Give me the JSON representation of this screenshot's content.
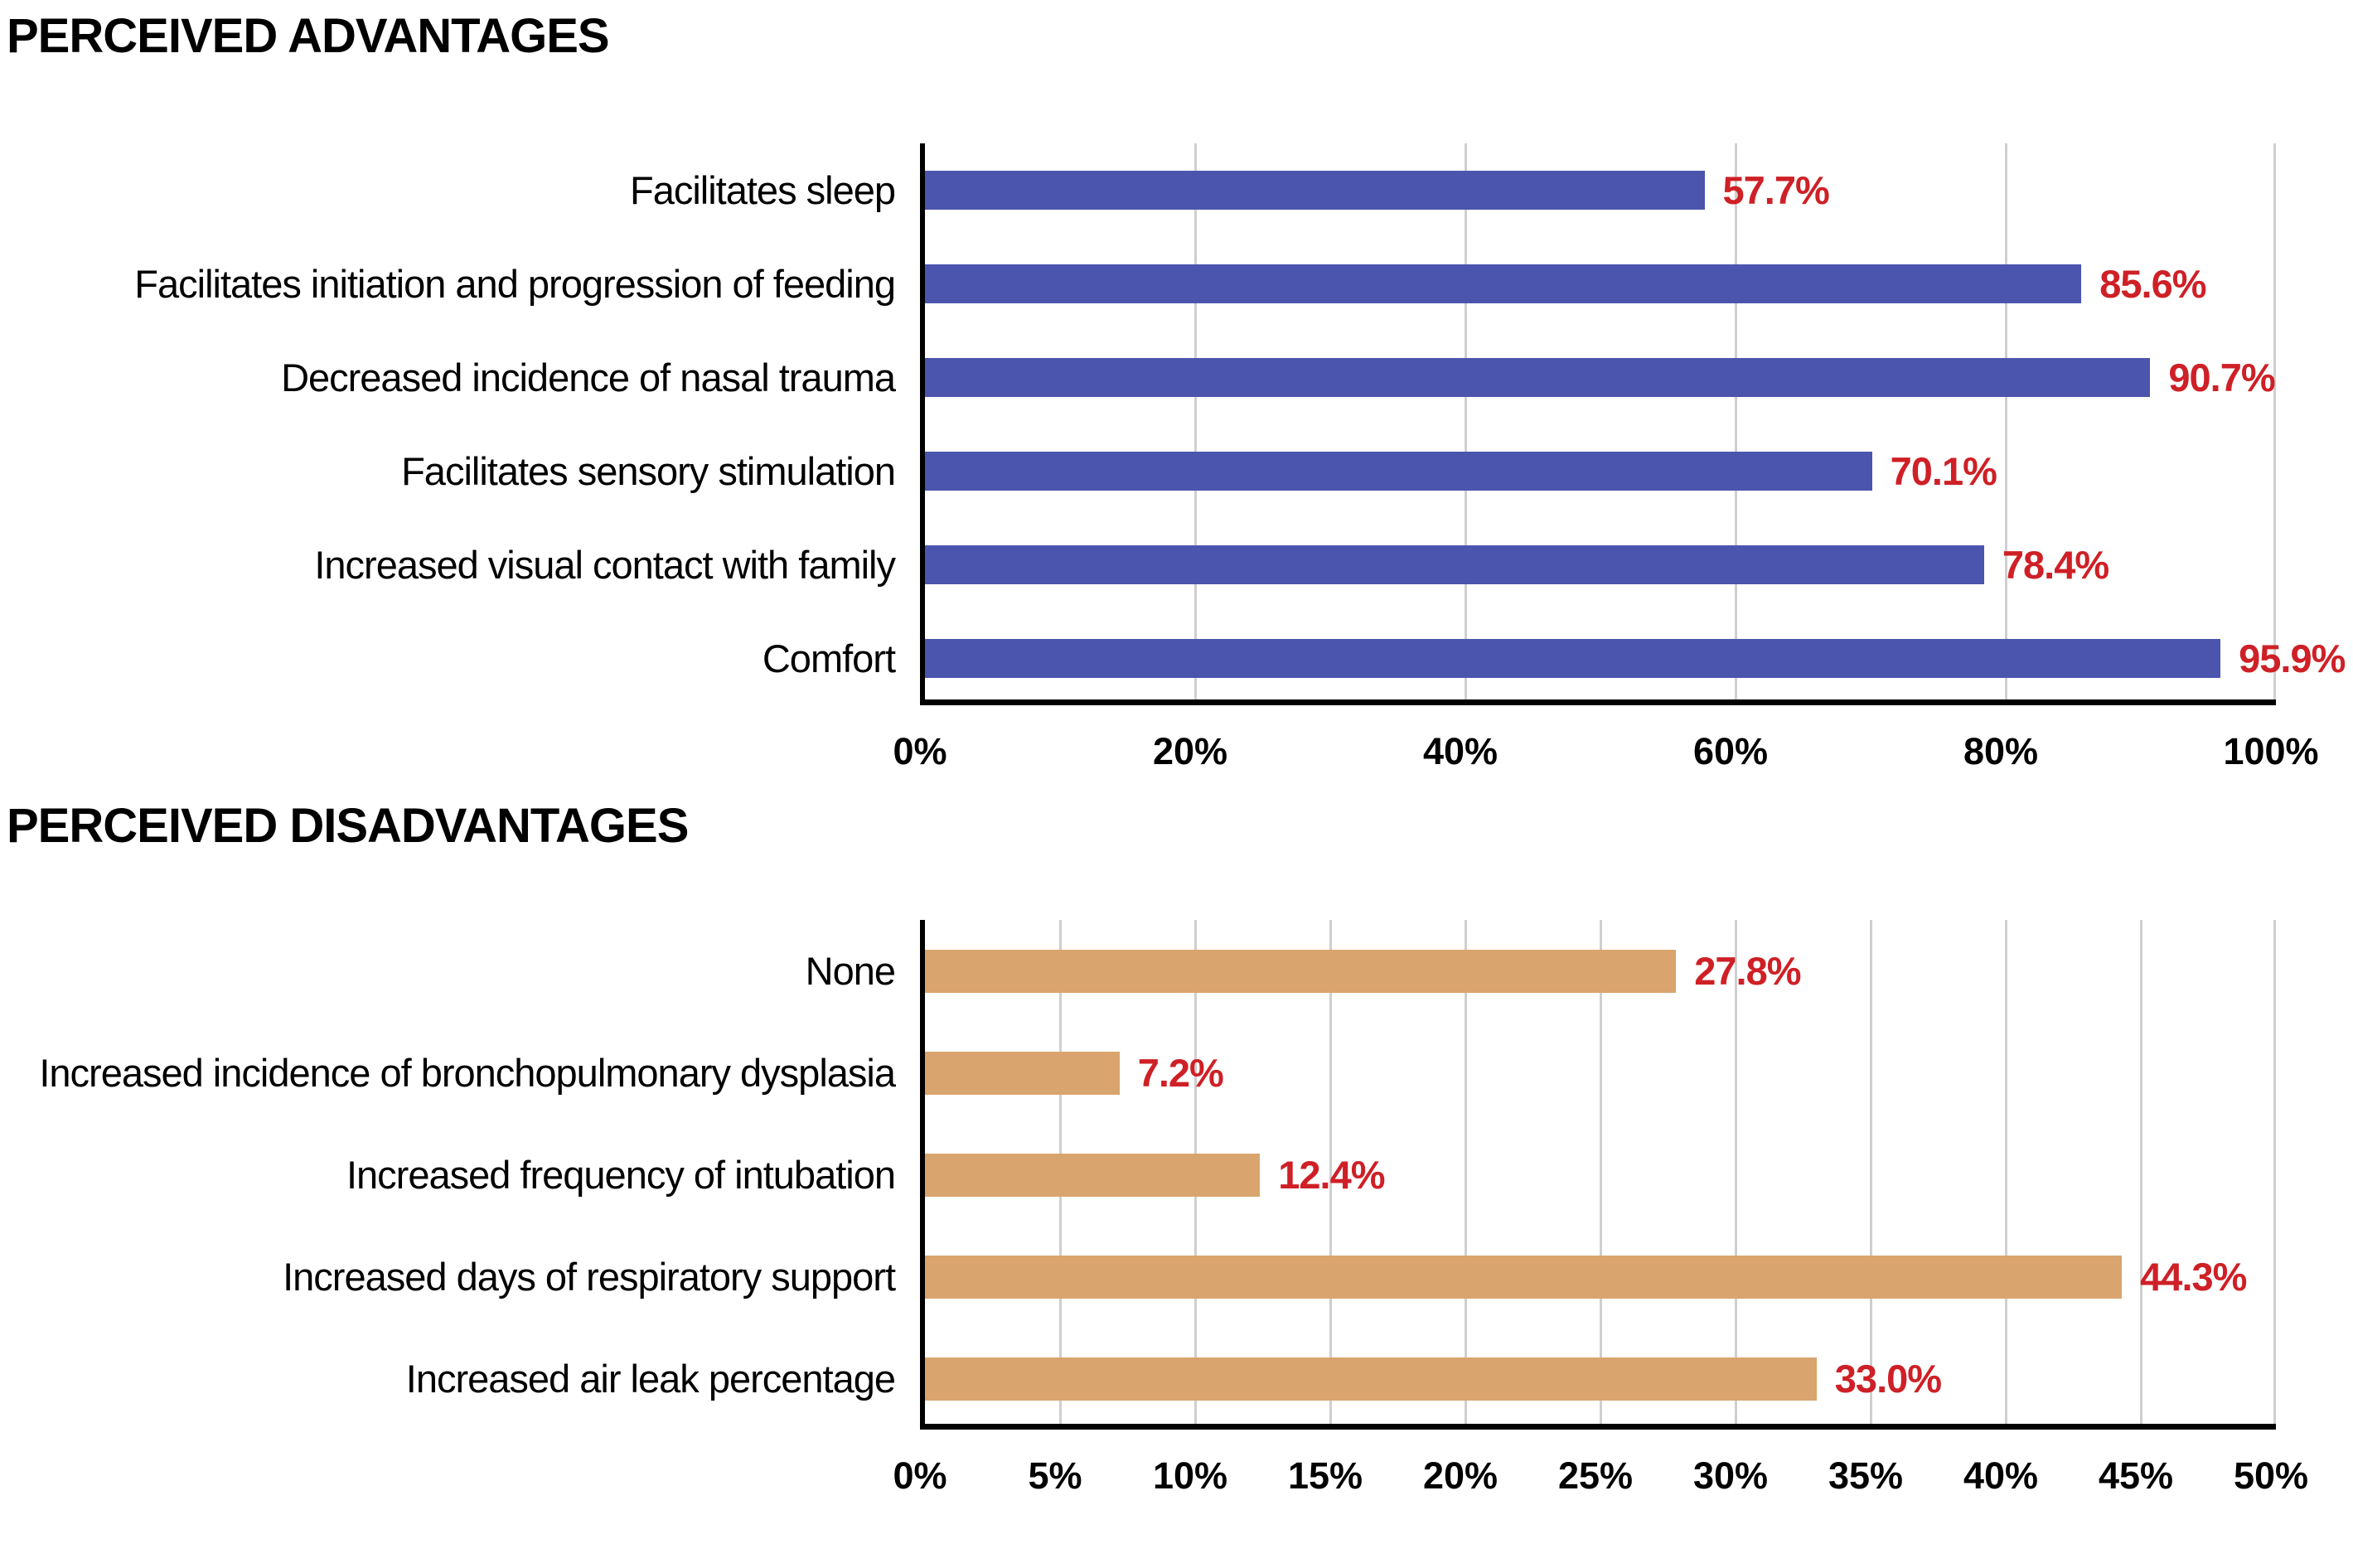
{
  "page": {
    "background": "#ffffff"
  },
  "colors": {
    "advantages_bar": "#4b55ad",
    "disadvantages_bar": "#d9a46d",
    "value_label": "#ce2026",
    "axis": "#000000",
    "gridline": "#cfcfcf",
    "text": "#000000"
  },
  "chart_data": [
    {
      "type": "bar",
      "orientation": "horizontal",
      "title": "PERCEIVED ADVANTAGES",
      "categories": [
        "Facilitates sleep",
        "Facilitates initiation and progression of feeding",
        "Decreased incidence of nasal trauma",
        "Facilitates sensory stimulation",
        "Increased visual contact with family",
        "Comfort"
      ],
      "values": [
        57.7,
        85.6,
        90.7,
        70.1,
        78.4,
        95.9
      ],
      "value_labels": [
        "57.7%",
        "85.6%",
        "90.7%",
        "70.1%",
        "78.4%",
        "95.9%"
      ],
      "xlabel": "",
      "ylabel": "",
      "xlim": [
        0,
        100
      ],
      "tick_step": 20,
      "x_ticks": [
        "0%",
        "20%",
        "40%",
        "60%",
        "80%",
        "100%"
      ],
      "grid": true,
      "legend": false,
      "bar_color": "#4b55ad",
      "value_label_color": "#ce2026"
    },
    {
      "type": "bar",
      "orientation": "horizontal",
      "title": "PERCEIVED DISADVANTAGES",
      "categories": [
        "None",
        "Increased incidence of bronchopulmonary dysplasia",
        "Increased frequency of intubation",
        "Increased days of respiratory support",
        "Increased air leak percentage"
      ],
      "values": [
        27.8,
        7.2,
        12.4,
        44.3,
        33.0
      ],
      "value_labels": [
        "27.8%",
        "7.2%",
        "12.4%",
        "44.3%",
        "33.0%"
      ],
      "xlabel": "",
      "ylabel": "",
      "xlim": [
        0,
        50
      ],
      "tick_step": 5,
      "x_ticks": [
        "0%",
        "5%",
        "10%",
        "15%",
        "20%",
        "25%",
        "30%",
        "35%",
        "40%",
        "45%",
        "50%"
      ],
      "grid": true,
      "legend": false,
      "bar_color": "#d9a46d",
      "value_label_color": "#ce2026"
    }
  ]
}
